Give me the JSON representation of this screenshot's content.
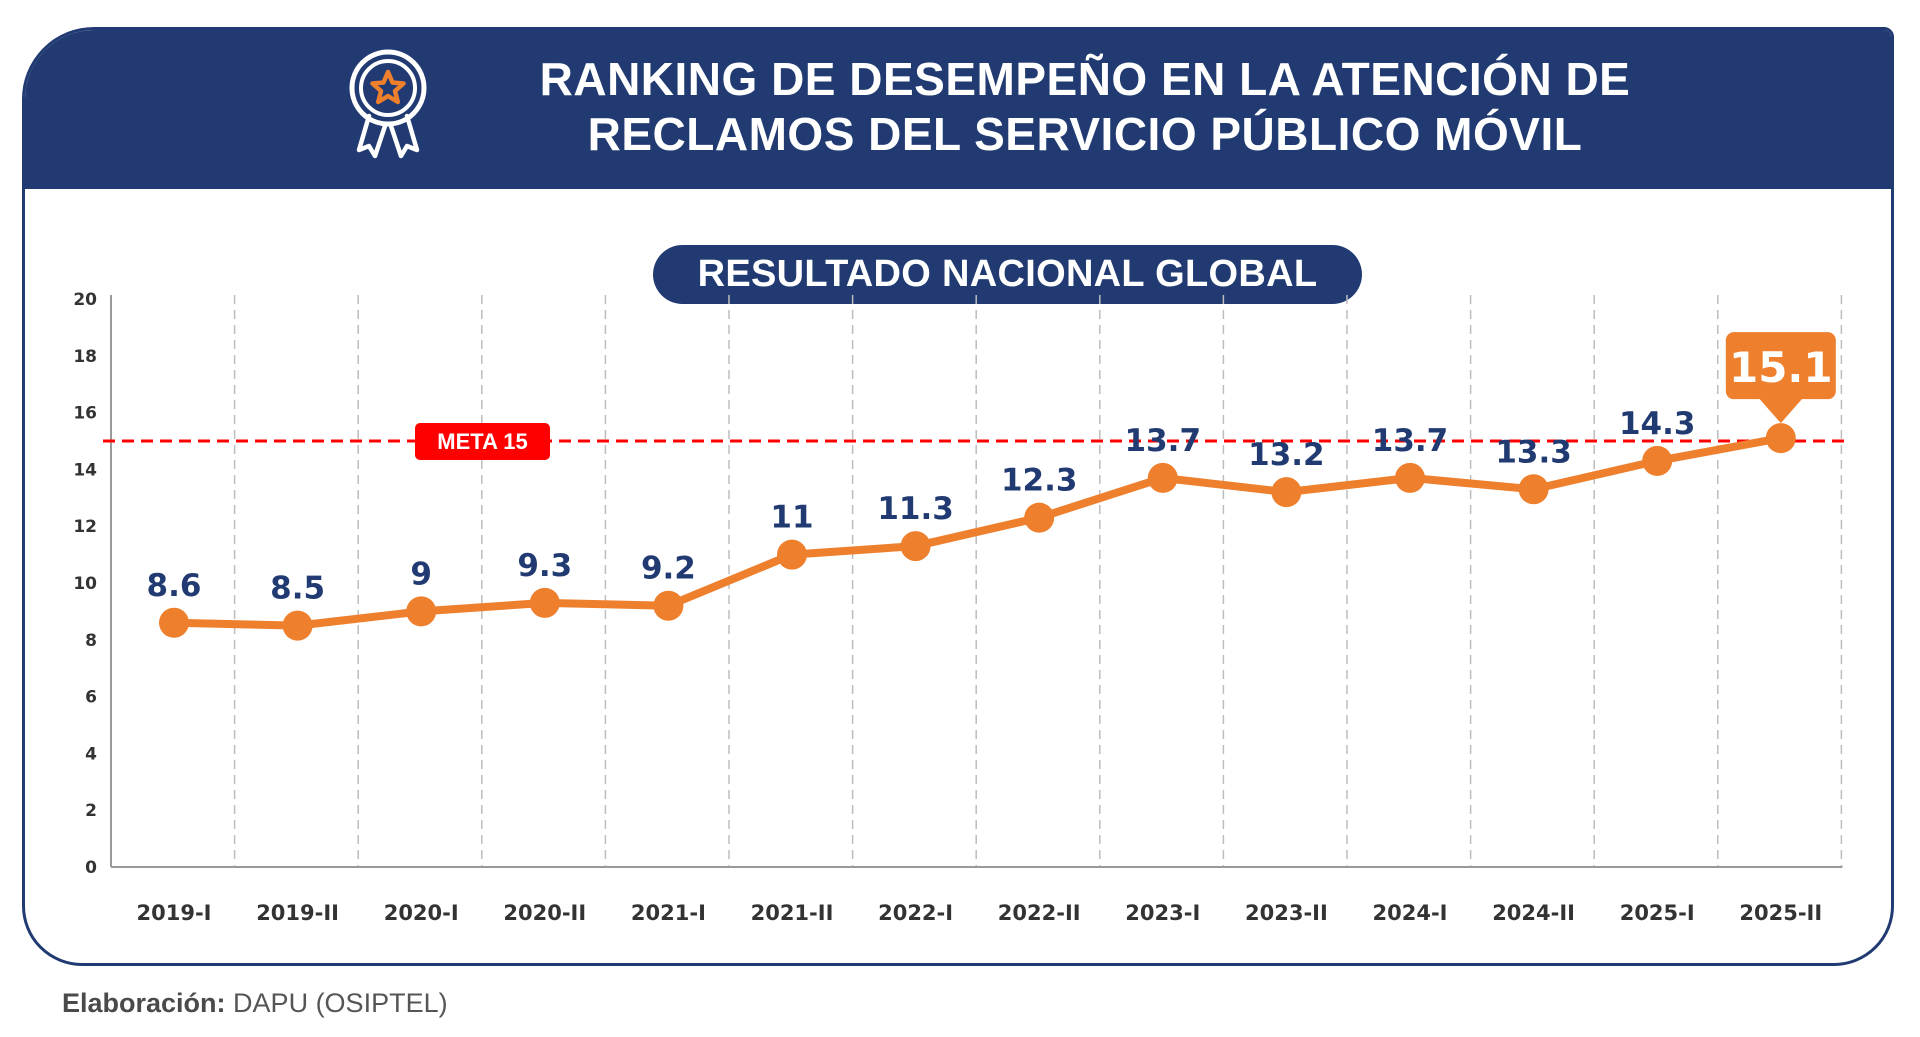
{
  "header": {
    "title_line1": "RANKING DE DESEMPEÑO EN LA ATENCIÓN DE",
    "title_line2": "RECLAMOS DEL SERVICIO PÚBLICO MÓVIL",
    "icon": "award-ribbon-star-icon"
  },
  "subtitle_pill": "RESULTADO NACIONAL GLOBAL",
  "footer": {
    "label": "Elaboración:",
    "value": "DAPU (OSIPTEL)"
  },
  "colors": {
    "navy": "#213b72",
    "orange": "#ee7f2d",
    "red": "#ff0000",
    "axis_text": "#333333",
    "grid": "#bdbdbd"
  },
  "chart_data": {
    "type": "line",
    "title": "RESULTADO NACIONAL GLOBAL",
    "xlabel": "",
    "ylabel": "",
    "categories": [
      "2019-I",
      "2019-II",
      "2020-I",
      "2020-II",
      "2021-I",
      "2021-II",
      "2022-I",
      "2022-II",
      "2023-I",
      "2023-II",
      "2024-I",
      "2024-II",
      "2025-I",
      "2025-II"
    ],
    "series": [
      {
        "name": "Resultado nacional global",
        "values": [
          8.6,
          8.5,
          9,
          9.3,
          9.2,
          11,
          11.3,
          12.3,
          13.7,
          13.2,
          13.7,
          13.3,
          14.3,
          15.1
        ]
      }
    ],
    "data_labels": [
      "8.6",
      "8.5",
      "9",
      "9.3",
      "9.2",
      "11",
      "11.3",
      "12.3",
      "13.7",
      "13.2",
      "13.7",
      "13.3",
      "14.3",
      "15.1"
    ],
    "highlight_index": 13,
    "ylim": [
      0,
      20
    ],
    "yticks": [
      0,
      2,
      4,
      6,
      8,
      10,
      12,
      14,
      16,
      18,
      20
    ],
    "grid": "vertical dashed between categories",
    "reference_line": {
      "value": 15,
      "label": "META 15",
      "style": "dashed red"
    }
  }
}
